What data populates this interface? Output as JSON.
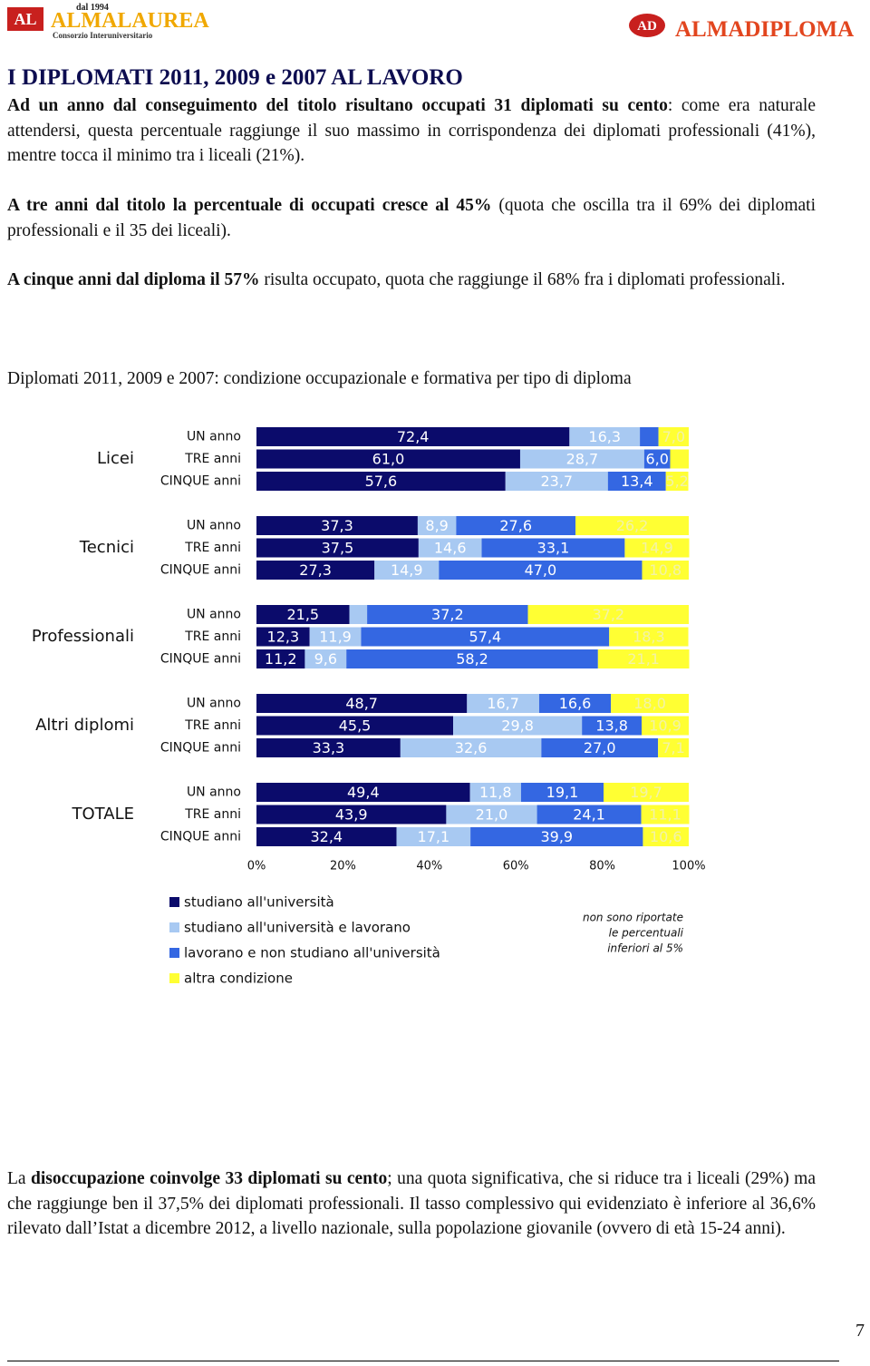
{
  "header": {
    "left_since": "dal 1994",
    "left_mark": "AL",
    "left_name": "ALMALAUREA",
    "left_subtitle": "Consorzio Interuniversitario",
    "right_mark": "AD",
    "right_name": "ALMADIPLOMA"
  },
  "title": "I DIPLOMATI 2011, 2009 e 2007 AL LAVORO",
  "paragraphs": [
    [
      "Ad un anno dal conseguimento del titolo risultano occupati 31 diplomati su cento",
      ": come era naturale attendersi, questa percentuale raggiunge il suo massimo in corrispondenza dei diplomati professionali (41%), mentre tocca il minimo tra i liceali (21%)."
    ],
    [
      "A tre anni dal titolo la percentuale di occupati cresce al 45%",
      " (quota che oscilla tra il 69% dei diplomati professionali e il 35 dei liceali)."
    ],
    [
      "A cinque anni dal diploma il 57%",
      " risulta occupato, quota che raggiunge il 68% fra i diplomati professionali."
    ]
  ],
  "chart_data": {
    "type": "bar",
    "orientation": "horizontal",
    "stacked": true,
    "title": "Diplomati 2011, 2009 e 2007: condizione occupazionale e formativa per tipo di diploma",
    "groups": [
      "Licei",
      "Tecnici",
      "Professionali",
      "Altri diplomi",
      "TOTALE"
    ],
    "categories": [
      "UN anno",
      "TRE anni",
      "CINQUE anni",
      "UN anno",
      "TRE anni",
      "CINQUE anni",
      "UN anno",
      "TRE anni",
      "CINQUE anni",
      "UN anno",
      "TRE anni",
      "CINQUE anni",
      "UN anno",
      "TRE anni",
      "CINQUE anni"
    ],
    "xlim": [
      0,
      100
    ],
    "xticks": [
      {
        "value": 0,
        "label": "0%"
      },
      {
        "value": 20,
        "label": "20%"
      },
      {
        "value": 40,
        "label": "40%"
      },
      {
        "value": 60,
        "label": "60%"
      },
      {
        "value": 80,
        "label": "80%"
      },
      {
        "value": 100,
        "label": "100%"
      }
    ],
    "series": [
      {
        "name": "studiano all'università",
        "color": "#0b0b6b",
        "values": [
          72.4,
          61.0,
          57.6,
          37.3,
          37.5,
          27.3,
          21.5,
          12.3,
          11.2,
          48.7,
          45.5,
          33.3,
          49.4,
          43.9,
          32.4
        ],
        "value_labels": [
          "72,4",
          "61,0",
          "57,6",
          "37,3",
          "37,5",
          "27,3",
          "21,5",
          "12,3",
          "11,2",
          "48,7",
          "45,5",
          "33,3",
          "49,4",
          "43,9",
          "32,4"
        ]
      },
      {
        "name": "studiano all'università e lavorano",
        "color": "#a8c9f2",
        "values": [
          16.3,
          28.7,
          23.7,
          8.9,
          14.6,
          14.9,
          4.1,
          11.9,
          9.6,
          16.7,
          29.8,
          32.6,
          11.8,
          21.0,
          17.1
        ],
        "value_labels": [
          "16,3",
          "28,7",
          "23,7",
          "8,9",
          "14,6",
          "14,9",
          null,
          "11,9",
          "9,6",
          "16,7",
          "29,8",
          "32,6",
          "11,8",
          "21,0",
          "17,1"
        ]
      },
      {
        "name": "lavorano e non studiano all'università",
        "color": "#3467e2",
        "values": [
          4.3,
          6.0,
          13.4,
          27.6,
          33.1,
          47.0,
          37.2,
          57.4,
          58.2,
          16.6,
          13.8,
          27.0,
          19.1,
          24.1,
          39.9
        ],
        "value_labels": [
          null,
          "6,0",
          "13,4",
          "27,6",
          "33,1",
          "47,0",
          "37,2",
          "57,4",
          "58,2",
          "16,6",
          "13,8",
          "27,0",
          "19,1",
          "24,1",
          "39,9"
        ]
      },
      {
        "name": "altra condizione",
        "color": "#ffff33",
        "values": [
          7.0,
          4.3,
          5.2,
          26.2,
          14.9,
          10.8,
          37.2,
          18.3,
          21.1,
          18.0,
          10.9,
          7.1,
          19.7,
          11.1,
          10.6
        ],
        "value_labels": [
          "7,0",
          null,
          "5,2",
          "26,2",
          "14,9",
          "10,8",
          "37,2",
          "18,3",
          "21,1",
          "18,0",
          "10,9",
          "7,1",
          "19,7",
          "11,1",
          "10,6"
        ]
      }
    ],
    "note": [
      "non sono riportate",
      "le percentuali",
      "inferiori al 5%"
    ]
  },
  "closing": [
    "La ",
    "disoccupazione coinvolge 33 diplomati su cento",
    "; una quota significativa, che si riduce tra i liceali (29%) ma che raggiunge ben il 37,5% dei diplomati professionali. Il tasso complessivo qui evidenziato è inferiore al 36,6% rilevato dall’Istat a dicembre 2012, a livello nazionale, sulla popolazione giovanile (ovvero di età 15-24 anni)."
  ],
  "page_number": "7"
}
